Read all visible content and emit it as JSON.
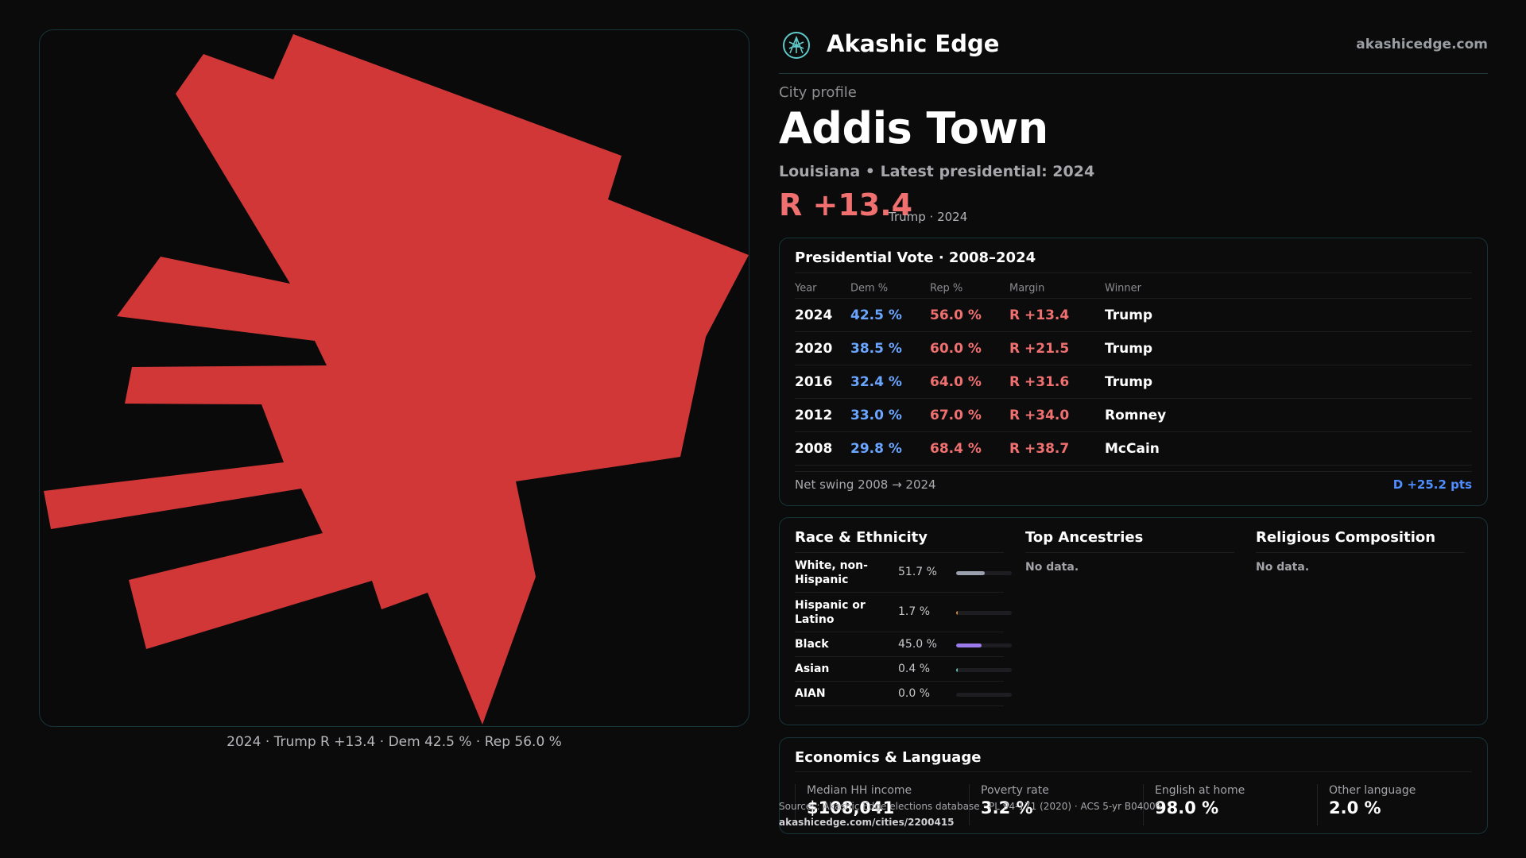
{
  "map": {
    "caption": "2024 · Trump R +13.4 · Dem 42.5 % · Rep 56.0 %",
    "fill_color": "#d23737"
  },
  "brand": {
    "name": "Akashic Edge",
    "url": "akashicedge.com",
    "logo_icon": "akashic-edge-logo-icon"
  },
  "profile": {
    "eyebrow": "City profile",
    "city": "Addis Town",
    "subline": "Louisiana • Latest presidential: 2024",
    "margin": "R +13.4",
    "margin_note": "Trump · 2024"
  },
  "presidential": {
    "title": "Presidential Vote · 2008–2024",
    "headers": {
      "year": "Year",
      "dem": "Dem %",
      "rep": "Rep %",
      "margin": "Margin",
      "winner": "Winner"
    },
    "rows": [
      {
        "year": "2024",
        "dem": "42.5 %",
        "rep": "56.0 %",
        "margin": "R +13.4",
        "winner": "Trump"
      },
      {
        "year": "2020",
        "dem": "38.5 %",
        "rep": "60.0 %",
        "margin": "R +21.5",
        "winner": "Trump"
      },
      {
        "year": "2016",
        "dem": "32.4 %",
        "rep": "64.0 %",
        "margin": "R +31.6",
        "winner": "Trump"
      },
      {
        "year": "2012",
        "dem": "33.0 %",
        "rep": "67.0 %",
        "margin": "R +34.0",
        "winner": "Romney"
      },
      {
        "year": "2008",
        "dem": "29.8 %",
        "rep": "68.4 %",
        "margin": "R +38.7",
        "winner": "McCain"
      }
    ],
    "swing_label": "Net swing 2008 → 2024",
    "swing_value": "D +25.2 pts"
  },
  "race": {
    "title": "Race & Ethnicity",
    "rows": [
      {
        "label": "White, non-Hispanic",
        "pct": "51.7 %",
        "share": 0.517,
        "color": "#9aa0ad"
      },
      {
        "label": "Hispanic or Latino",
        "pct": "1.7 %",
        "share": 0.017,
        "color": "#d4883a"
      },
      {
        "label": "Black",
        "pct": "45.0 %",
        "share": 0.45,
        "color": "#9b7bea"
      },
      {
        "label": "Asian",
        "pct": "0.4 %",
        "share": 0.004,
        "color": "#5bbfae"
      },
      {
        "label": "AIAN",
        "pct": "0.0 %",
        "share": 0.0,
        "color": "#c9a24f"
      }
    ]
  },
  "ancestries": {
    "title": "Top Ancestries",
    "empty": "No data."
  },
  "religion": {
    "title": "Religious Composition",
    "empty": "No data."
  },
  "economics": {
    "title": "Economics & Language",
    "stats": [
      {
        "label": "Median HH income",
        "value": "$108,041"
      },
      {
        "label": "Poverty rate",
        "value": "3.2 %"
      },
      {
        "label": "English at home",
        "value": "98.0 %"
      },
      {
        "label": "Other language",
        "value": "2.0 %"
      }
    ]
  },
  "sources": {
    "line": "Sources: Akashic Edge elections database · PL 94-171 (2020) · ACS 5-yr B04006",
    "url": "akashicedge.com/cities/2200415"
  }
}
